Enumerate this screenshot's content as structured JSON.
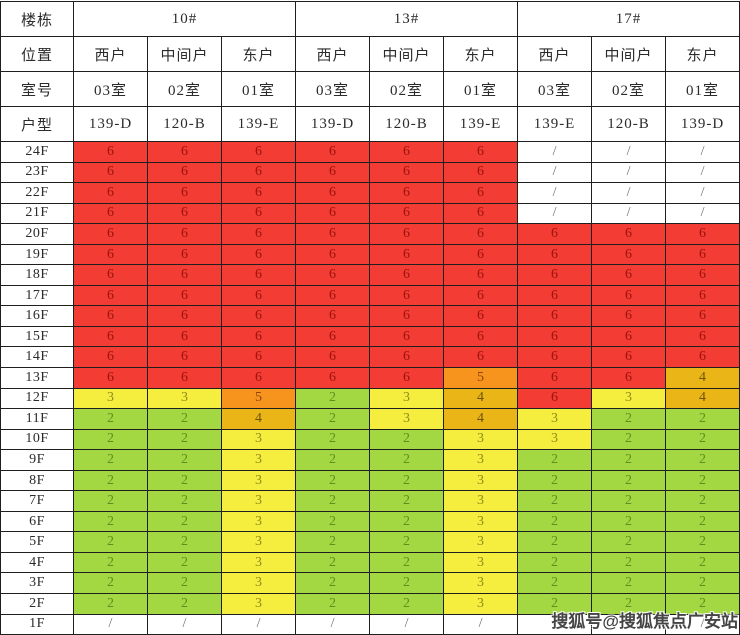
{
  "watermark": "搜狐号@搜狐焦点广安站",
  "colors": {
    "6": {
      "bg": "#f23c34",
      "text": "#9c130b"
    },
    "5": {
      "bg": "#f7941e",
      "text": "#8f4309"
    },
    "4": {
      "bg": "#e9b517",
      "text": "#6f5208"
    },
    "3": {
      "bg": "#f5ee3e",
      "text": "#8f8d1c"
    },
    "2": {
      "bg": "#a4d843",
      "text": "#5f8f1d"
    },
    "/": {
      "bg": "#ffffff",
      "text": "#707070"
    }
  },
  "chart_data": {
    "type": "table",
    "corner_labels": [
      "楼栋",
      "位置",
      "室号",
      "户型"
    ],
    "buildings": [
      {
        "name": "10#",
        "span": 3
      },
      {
        "name": "13#",
        "span": 3
      },
      {
        "name": "17#",
        "span": 3
      }
    ],
    "positions": [
      "西户",
      "中间户",
      "东户",
      "西户",
      "中间户",
      "东户",
      "西户",
      "中间户",
      "东户"
    ],
    "rooms": [
      "03室",
      "02室",
      "01室",
      "03室",
      "02室",
      "01室",
      "03室",
      "02室",
      "01室"
    ],
    "unit_types": [
      "139-D",
      "120-B",
      "139-E",
      "139-D",
      "120-B",
      "139-E",
      "139-E",
      "120-B",
      "139-D"
    ],
    "floors": [
      "24F",
      "23F",
      "22F",
      "21F",
      "20F",
      "19F",
      "18F",
      "17F",
      "16F",
      "15F",
      "14F",
      "13F",
      "12F",
      "11F",
      "10F",
      "9F",
      "8F",
      "7F",
      "6F",
      "5F",
      "4F",
      "3F",
      "2F",
      "1F"
    ],
    "values": [
      [
        "6",
        "6",
        "6",
        "6",
        "6",
        "6",
        "/",
        "/",
        "/"
      ],
      [
        "6",
        "6",
        "6",
        "6",
        "6",
        "6",
        "/",
        "/",
        "/"
      ],
      [
        "6",
        "6",
        "6",
        "6",
        "6",
        "6",
        "/",
        "/",
        "/"
      ],
      [
        "6",
        "6",
        "6",
        "6",
        "6",
        "6",
        "/",
        "/",
        "/"
      ],
      [
        "6",
        "6",
        "6",
        "6",
        "6",
        "6",
        "6",
        "6",
        "6"
      ],
      [
        "6",
        "6",
        "6",
        "6",
        "6",
        "6",
        "6",
        "6",
        "6"
      ],
      [
        "6",
        "6",
        "6",
        "6",
        "6",
        "6",
        "6",
        "6",
        "6"
      ],
      [
        "6",
        "6",
        "6",
        "6",
        "6",
        "6",
        "6",
        "6",
        "6"
      ],
      [
        "6",
        "6",
        "6",
        "6",
        "6",
        "6",
        "6",
        "6",
        "6"
      ],
      [
        "6",
        "6",
        "6",
        "6",
        "6",
        "6",
        "6",
        "6",
        "6"
      ],
      [
        "6",
        "6",
        "6",
        "6",
        "6",
        "6",
        "6",
        "6",
        "6"
      ],
      [
        "6",
        "6",
        "6",
        "6",
        "6",
        "5",
        "6",
        "6",
        "4"
      ],
      [
        "3",
        "3",
        "5",
        "2",
        "3",
        "4",
        "6",
        "3",
        "4"
      ],
      [
        "2",
        "2",
        "4",
        "2",
        "3",
        "4",
        "3",
        "2",
        "2"
      ],
      [
        "2",
        "2",
        "3",
        "2",
        "2",
        "3",
        "3",
        "2",
        "2"
      ],
      [
        "2",
        "2",
        "3",
        "2",
        "2",
        "3",
        "2",
        "2",
        "2"
      ],
      [
        "2",
        "2",
        "3",
        "2",
        "2",
        "3",
        "2",
        "2",
        "2"
      ],
      [
        "2",
        "2",
        "3",
        "2",
        "2",
        "3",
        "2",
        "2",
        "2"
      ],
      [
        "2",
        "2",
        "3",
        "2",
        "2",
        "3",
        "2",
        "2",
        "2"
      ],
      [
        "2",
        "2",
        "3",
        "2",
        "2",
        "3",
        "2",
        "2",
        "2"
      ],
      [
        "2",
        "2",
        "3",
        "2",
        "2",
        "3",
        "2",
        "2",
        "2"
      ],
      [
        "2",
        "2",
        "3",
        "2",
        "2",
        "3",
        "2",
        "2",
        "2"
      ],
      [
        "2",
        "2",
        "3",
        "2",
        "2",
        "3",
        "2",
        "2",
        "2"
      ],
      [
        "/",
        "/",
        "/",
        "/",
        "/",
        "/",
        "/",
        "/",
        "/"
      ]
    ]
  }
}
